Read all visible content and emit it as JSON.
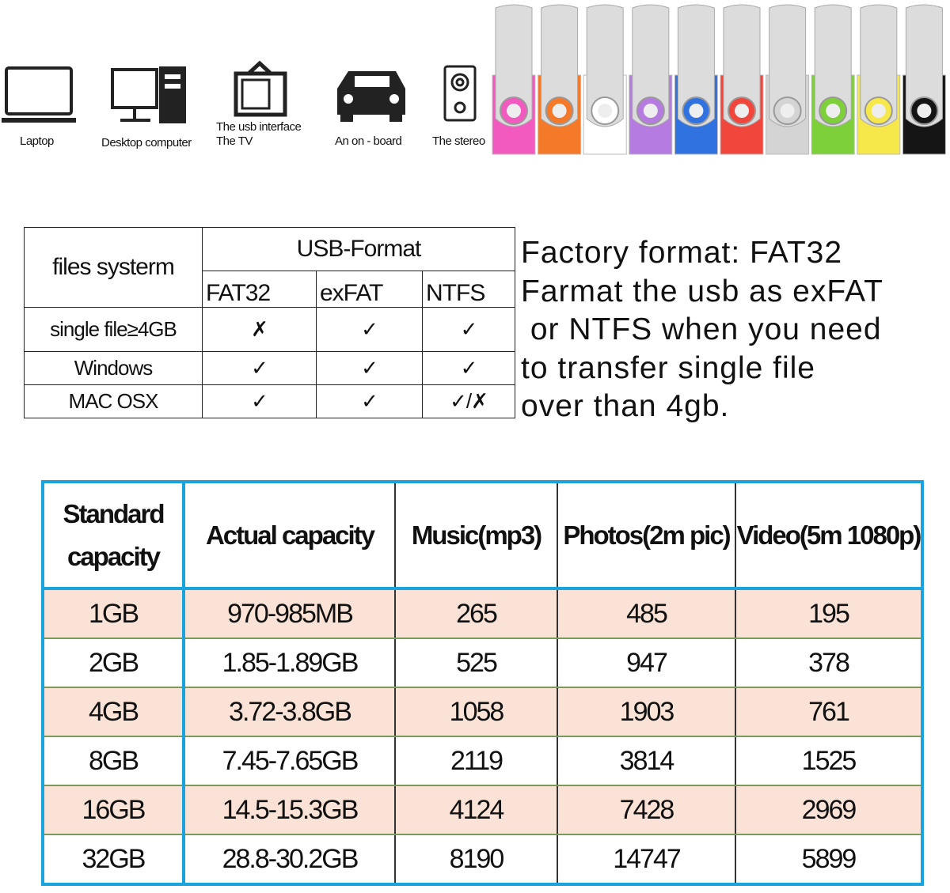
{
  "devices": [
    {
      "label": [
        "Laptop"
      ]
    },
    {
      "label": [
        "Desktop computer"
      ]
    },
    {
      "label": [
        "The usb interface",
        "The TV"
      ]
    },
    {
      "label": [
        "An on - board"
      ]
    },
    {
      "label": [
        "The stereo"
      ]
    }
  ],
  "format_table": {
    "corner": "files systerm",
    "group": "USB-Format",
    "columns": [
      "FAT32",
      "exFAT",
      "NTFS"
    ],
    "rows": [
      {
        "label": "single file≥4GB",
        "cells": [
          "✗",
          "✓",
          "✓"
        ]
      },
      {
        "label": "Windows",
        "cells": [
          "✓",
          "✓",
          "✓"
        ]
      },
      {
        "label": "MAC OSX",
        "cells": [
          "✓",
          "✓",
          "✓/✗"
        ]
      }
    ]
  },
  "note": [
    "Factory format: FAT32",
    "Farmat the usb as exFAT",
    " or NTFS when you need",
    "to transfer single file",
    "over than 4gb."
  ],
  "capacity_table": {
    "headers": [
      "Standard capacity",
      "Actual capacity",
      "Music(mp3)",
      "Photos(2m pic)",
      "Video(5m 1080p)"
    ],
    "rows": [
      [
        "1GB",
        "970-985MB",
        265,
        485,
        195
      ],
      [
        "2GB",
        "1.85-1.89GB",
        525,
        947,
        378
      ],
      [
        "4GB",
        "3.72-3.8GB",
        1058,
        1903,
        761
      ],
      [
        "8GB",
        "7.45-7.65GB",
        2119,
        3814,
        1525
      ],
      [
        "16GB",
        "14.5-15.3GB",
        4124,
        7428,
        2969
      ],
      [
        "32GB",
        "28.8-30.2GB",
        8190,
        14747,
        5899
      ]
    ]
  }
}
